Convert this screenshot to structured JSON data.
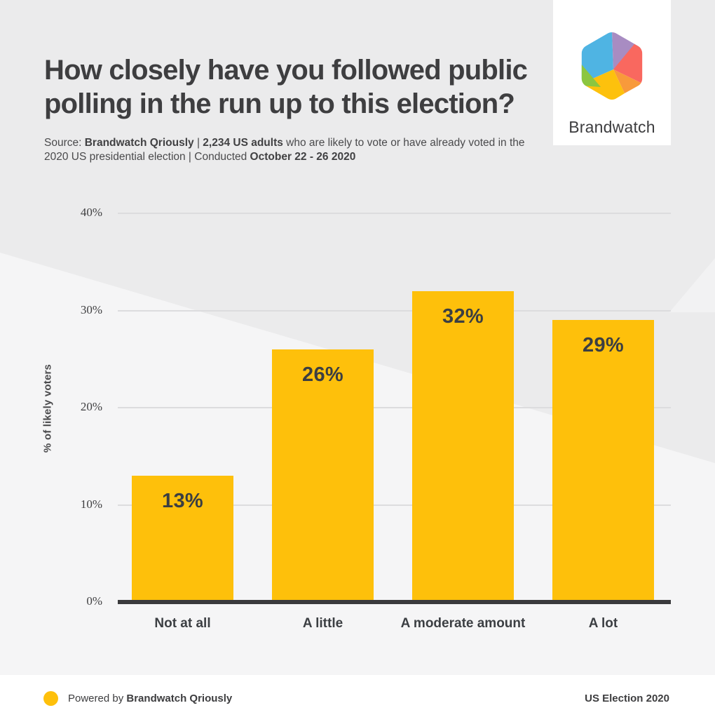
{
  "header": {
    "title_line1": "How closely have you followed public",
    "title_line2": "polling in the run up to this election?",
    "source": {
      "prefix": "Source: ",
      "bold_a": "Brandwatch Qriously",
      "sep_a": " | ",
      "bold_b": "2,234 US adults",
      "line1_rest": " who are likely to vote or have already voted in the",
      "line2_start": "2020 US presidential election | Conducted ",
      "bold_c": "October 22 - 26 2020"
    }
  },
  "logo": {
    "brand_name": "Brandwatch",
    "facet_colors": {
      "blue": "#4fb4e3",
      "purple": "#a88cc2",
      "red": "#f9685f",
      "orange": "#f89a3b",
      "yellow": "#fdc10d",
      "green": "#8cc640"
    }
  },
  "chart_data": {
    "type": "bar",
    "categories": [
      "Not at all",
      "A little",
      "A moderate amount",
      "A lot"
    ],
    "values": [
      13,
      26,
      32,
      29
    ],
    "value_labels": [
      "13%",
      "26%",
      "32%",
      "29%"
    ],
    "title": "How closely have you followed public polling in the run up to this election?",
    "xlabel": "",
    "ylabel": "% of likely voters",
    "ylim": [
      0,
      40
    ],
    "yticks": [
      0,
      10,
      20,
      30,
      40
    ],
    "ytick_labels": [
      "0%",
      "10%",
      "20%",
      "30%",
      "40%"
    ],
    "grid": true,
    "legend": false,
    "bar_color": "#fec00b"
  },
  "footer": {
    "powered_prefix": "Powered by ",
    "powered_brand": "Brandwatch Qriously",
    "right_label": "US Election 2020",
    "dot_color": "#fec00b"
  },
  "colors": {
    "accent_yellow": "#fec00b",
    "text_dark": "#3e3e40",
    "bg_light": "#f5f5f6",
    "bg_dark": "#ebebec",
    "gridline": "#dcdcde",
    "axis": "#3a3a3c"
  }
}
